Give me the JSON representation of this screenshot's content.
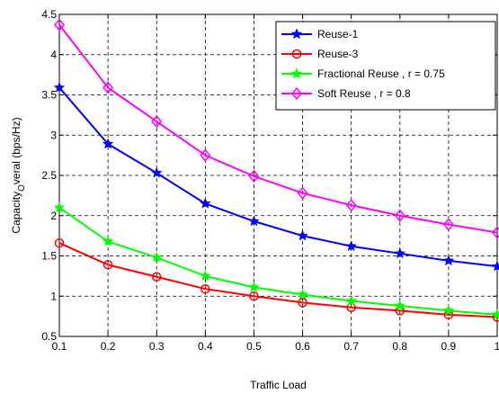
{
  "chart_data": {
    "type": "line",
    "title": "",
    "xlabel": "Traffic Load",
    "ylabel": "Capacity",
    "ylabel_sub": "O",
    "ylabel_rest": "veral (bps/Hz)",
    "x": [
      0.1,
      0.2,
      0.3,
      0.4,
      0.5,
      0.6,
      0.7,
      0.8,
      0.9,
      1.0
    ],
    "xlim": [
      0.1,
      1.0
    ],
    "ylim": [
      0.5,
      4.5
    ],
    "xticks": [
      0.1,
      0.2,
      0.3,
      0.4,
      0.5,
      0.6,
      0.7,
      0.8,
      0.9,
      1.0
    ],
    "xtick_labels": [
      "0.1",
      "0.2",
      "0.3",
      "0.4",
      "0.5",
      "0.6",
      "0.7",
      "0.8",
      "0.9",
      "1"
    ],
    "yticks": [
      0.5,
      1.0,
      1.5,
      2.0,
      2.5,
      3.0,
      3.5,
      4.0,
      4.5
    ],
    "ytick_labels": [
      "0.5",
      "1",
      "1.5",
      "2",
      "2.5",
      "3",
      "3.5",
      "4",
      "4.5"
    ],
    "grid": true,
    "legend_position": "top-right",
    "series": [
      {
        "name": "Reuse-1",
        "color": "#0000ff",
        "marker": "star",
        "values": [
          3.59,
          2.89,
          2.53,
          2.15,
          1.93,
          1.75,
          1.62,
          1.53,
          1.44,
          1.37
        ]
      },
      {
        "name": "Reuse-3",
        "color": "#ff0000",
        "marker": "circle",
        "values": [
          1.66,
          1.39,
          1.24,
          1.09,
          1.0,
          0.92,
          0.86,
          0.82,
          0.77,
          0.74
        ]
      },
      {
        "name": "Fractional Reuse , r = 0.75",
        "color": "#00ff00",
        "marker": "star",
        "values": [
          2.1,
          1.68,
          1.48,
          1.25,
          1.11,
          1.02,
          0.94,
          0.88,
          0.82,
          0.77
        ]
      },
      {
        "name": "Soft Reuse , r = 0.8",
        "color": "#ff00ff",
        "marker": "diamond",
        "values": [
          4.37,
          3.59,
          3.17,
          2.75,
          2.49,
          2.28,
          2.13,
          2.0,
          1.89,
          1.79
        ]
      }
    ]
  }
}
